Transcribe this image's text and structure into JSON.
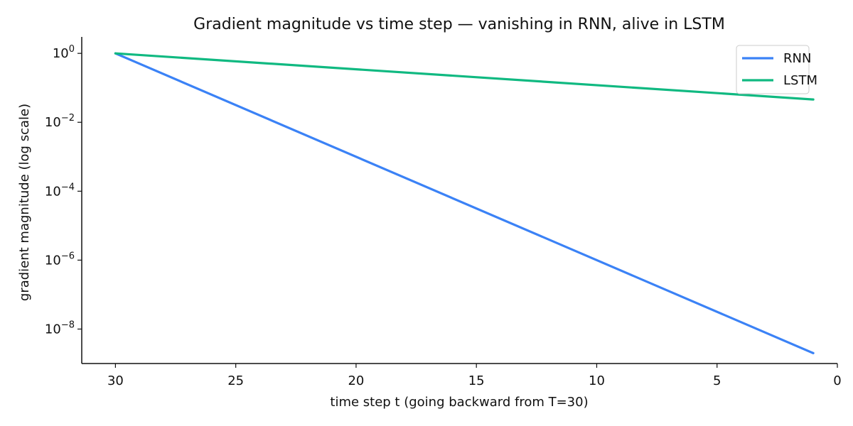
{
  "chart_data": {
    "type": "line",
    "title": "Gradient magnitude vs time step — vanishing in RNN, alive in LSTM",
    "xlabel": "time step t (going backward from T=30)",
    "ylabel": "gradient magnitude (log scale)",
    "x_reversed": true,
    "xlim": [
      0,
      31.4
    ],
    "x_ticks": [
      30,
      25,
      20,
      15,
      10,
      5,
      0
    ],
    "y_scale": "log",
    "ylim": [
      1e-09,
      3.0
    ],
    "y_ticks": [
      {
        "value": 1,
        "base": "10",
        "exp": "0"
      },
      {
        "value": 0.01,
        "base": "10",
        "exp": "−2"
      },
      {
        "value": 0.0001,
        "base": "10",
        "exp": "−4"
      },
      {
        "value": 1e-06,
        "base": "10",
        "exp": "−6"
      },
      {
        "value": 1e-08,
        "base": "10",
        "exp": "−8"
      }
    ],
    "grid": false,
    "legend_position": "top-right",
    "series": [
      {
        "name": "RNN",
        "color": "#3b82f6",
        "x": [
          30,
          1
        ],
        "y": [
          1,
          2e-09
        ]
      },
      {
        "name": "LSTM",
        "color": "#10b981",
        "x": [
          30,
          1
        ],
        "y": [
          1,
          0.046
        ]
      }
    ]
  }
}
